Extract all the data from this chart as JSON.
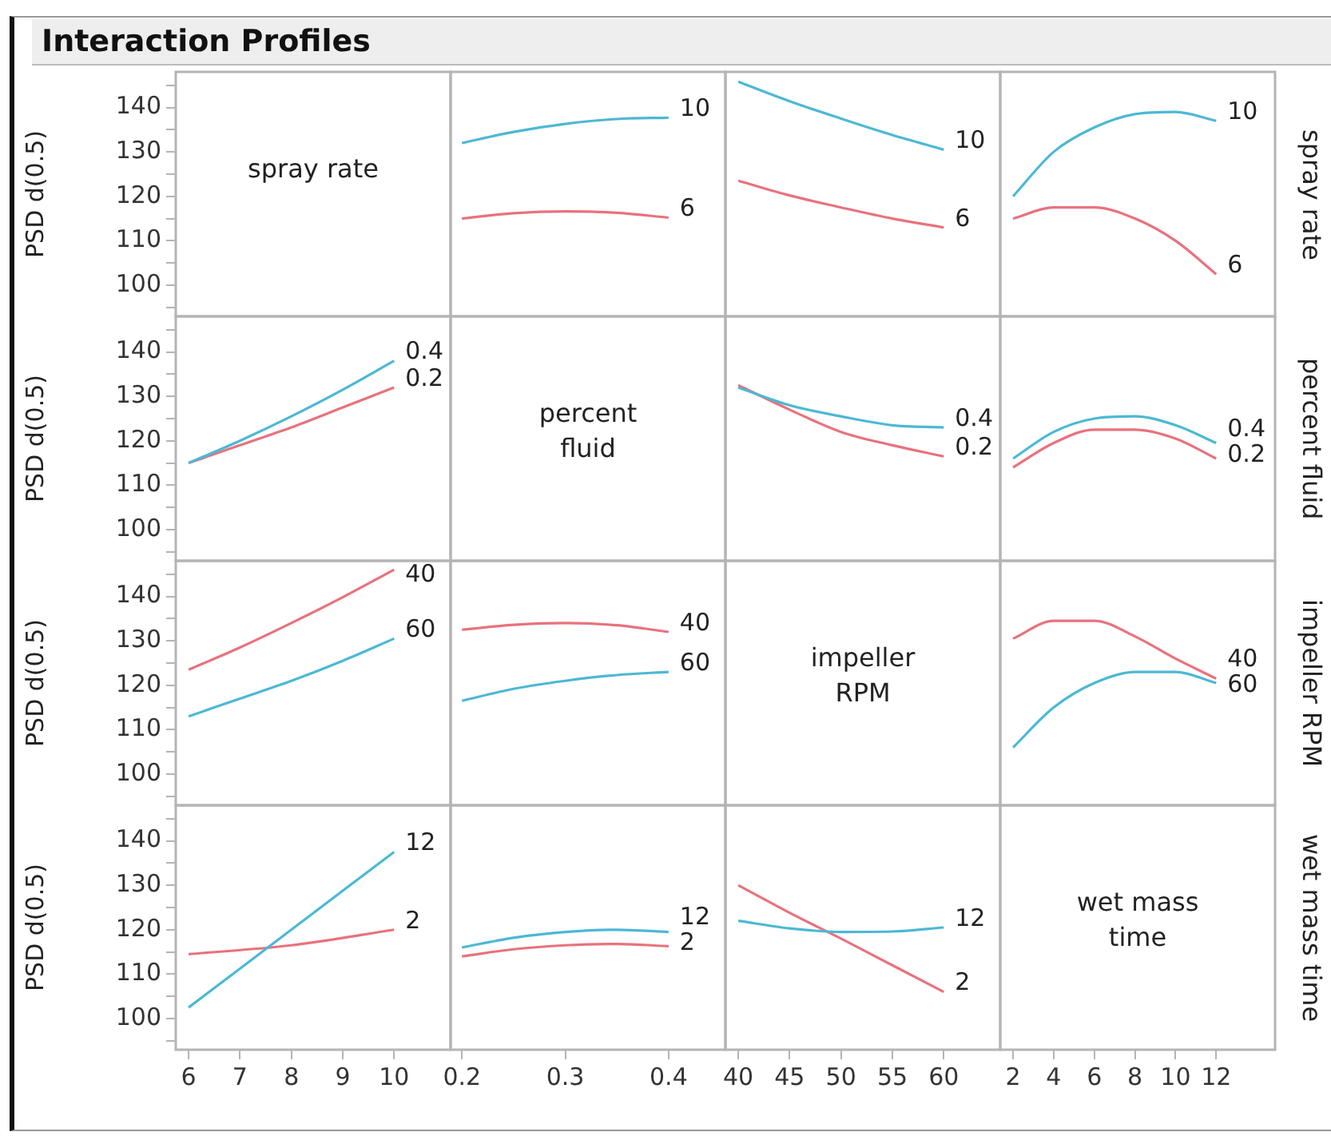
{
  "chart_data": [
    {
      "type": "line",
      "title": "Interaction Profiles",
      "annotations": [
        "spray rate"
      ],
      "ylabel": "PSD d(0.5)",
      "xlim": [
        5.75,
        11.1
      ],
      "ylim": [
        93,
        148
      ],
      "yticks": [
        {
          "value": 95,
          "label": null
        },
        100,
        {
          "value": 105,
          "label": null
        },
        110,
        {
          "value": 115,
          "label": null
        },
        120,
        {
          "value": 125,
          "label": null
        },
        130,
        {
          "value": 135,
          "label": null
        },
        140,
        {
          "value": 145,
          "label": null
        }
      ],
      "tick_labels": "y"
    },
    {
      "type": "line",
      "xlim": [
        0.189,
        0.455
      ],
      "ylim": [
        93,
        148
      ],
      "tick_labels": false,
      "series": [
        {
          "name": "10",
          "color": "#4cb8d4",
          "x": [
            0.2,
            0.25,
            0.3,
            0.35,
            0.4
          ],
          "values": [
            132,
            134.5,
            136.3,
            137.4,
            137.7
          ]
        },
        {
          "name": "6",
          "color": "#e8727d",
          "x": [
            0.2,
            0.25,
            0.3,
            0.35,
            0.4
          ],
          "values": [
            115,
            116.2,
            116.6,
            116.3,
            115.2
          ]
        }
      ]
    },
    {
      "type": "line",
      "xlim": [
        38.75,
        65.5
      ],
      "ylim": [
        93,
        148
      ],
      "tick_labels": false,
      "series": [
        {
          "name": "10",
          "color": "#4cb8d4",
          "x": [
            40,
            45,
            50,
            55,
            60
          ],
          "values": [
            145.8,
            141.4,
            137.5,
            133.8,
            130.5
          ]
        },
        {
          "name": "6",
          "color": "#e8727d",
          "x": [
            40,
            45,
            50,
            55,
            60
          ],
          "values": [
            123.5,
            120.2,
            117.5,
            115,
            113
          ]
        }
      ]
    },
    {
      "type": "line",
      "xlim": [
        1.37,
        14.9
      ],
      "ylim": [
        93,
        148
      ],
      "tick_labels": false,
      "y2label": "spray rate",
      "series": [
        {
          "name": "10",
          "color": "#4cb8d4",
          "x": [
            2,
            4,
            6,
            8,
            10,
            12
          ],
          "values": [
            120,
            130,
            135.5,
            138.5,
            139,
            137
          ]
        },
        {
          "name": "6",
          "color": "#e8727d",
          "x": [
            2,
            4,
            6,
            8,
            10,
            12
          ],
          "values": [
            115,
            117.5,
            117.5,
            115,
            110,
            102.5
          ]
        }
      ]
    },
    {
      "type": "line",
      "xlim": [
        5.75,
        11.1
      ],
      "ylim": [
        93,
        148
      ],
      "ylabel": "PSD d(0.5)",
      "yticks": [
        {
          "value": 95,
          "label": null
        },
        100,
        {
          "value": 105,
          "label": null
        },
        110,
        {
          "value": 115,
          "label": null
        },
        120,
        {
          "value": 125,
          "label": null
        },
        130,
        {
          "value": 135,
          "label": null
        },
        140,
        {
          "value": 145,
          "label": null
        }
      ],
      "tick_labels": "y",
      "series": [
        {
          "name": "0.4",
          "color": "#4cb8d4",
          "x": [
            6,
            7,
            8,
            9,
            10
          ],
          "values": [
            115,
            120,
            125.5,
            131.5,
            138
          ]
        },
        {
          "name": "0.2",
          "color": "#e8727d",
          "x": [
            6,
            7,
            8,
            9,
            10
          ],
          "values": [
            115,
            119,
            123,
            127.5,
            132
          ]
        }
      ]
    },
    {
      "type": "other",
      "annotations": [
        "percent fluid"
      ]
    },
    {
      "type": "line",
      "xlim": [
        38.75,
        65.5
      ],
      "ylim": [
        93,
        148
      ],
      "tick_labels": false,
      "series": [
        {
          "name": "0.4",
          "color": "#4cb8d4",
          "x": [
            40,
            45,
            50,
            55,
            60
          ],
          "values": [
            132,
            128,
            125.5,
            123.5,
            123
          ]
        },
        {
          "name": "0.2",
          "color": "#e8727d",
          "x": [
            40,
            45,
            50,
            55,
            60
          ],
          "values": [
            132.5,
            127,
            122,
            119,
            116.5
          ]
        }
      ]
    },
    {
      "type": "line",
      "xlim": [
        1.37,
        14.9
      ],
      "ylim": [
        93,
        148
      ],
      "tick_labels": false,
      "y2label": "percent fluid",
      "series": [
        {
          "name": "0.4",
          "color": "#4cb8d4",
          "x": [
            2,
            4,
            6,
            8,
            10,
            12
          ],
          "values": [
            116,
            122,
            125,
            125.5,
            123.5,
            119.5
          ]
        },
        {
          "name": "0.2",
          "color": "#e8727d",
          "x": [
            2,
            4,
            6,
            8,
            10,
            12
          ],
          "values": [
            114,
            119.5,
            122.5,
            122.5,
            120.5,
            116
          ]
        }
      ]
    },
    {
      "type": "line",
      "xlim": [
        5.75,
        11.1
      ],
      "ylim": [
        93,
        148
      ],
      "ylabel": "PSD d(0.5)",
      "yticks": [
        {
          "value": 95,
          "label": null
        },
        100,
        {
          "value": 105,
          "label": null
        },
        110,
        {
          "value": 115,
          "label": null
        },
        120,
        {
          "value": 125,
          "label": null
        },
        130,
        {
          "value": 135,
          "label": null
        },
        140,
        {
          "value": 145,
          "label": null
        }
      ],
      "tick_labels": "y",
      "series": [
        {
          "name": "40",
          "color": "#e8727d",
          "x": [
            6,
            7,
            8,
            9,
            10
          ],
          "values": [
            123.5,
            128.5,
            134,
            139.8,
            146
          ]
        },
        {
          "name": "60",
          "color": "#4cb8d4",
          "x": [
            6,
            7,
            8,
            9,
            10
          ],
          "values": [
            113,
            117,
            121,
            125.5,
            130.5
          ]
        }
      ]
    },
    {
      "type": "line",
      "xlim": [
        0.189,
        0.455
      ],
      "ylim": [
        93,
        148
      ],
      "tick_labels": false,
      "series": [
        {
          "name": "40",
          "color": "#e8727d",
          "x": [
            0.2,
            0.25,
            0.3,
            0.35,
            0.4
          ],
          "values": [
            132.5,
            133.6,
            134,
            133.5,
            132
          ]
        },
        {
          "name": "60",
          "color": "#4cb8d4",
          "x": [
            0.2,
            0.25,
            0.3,
            0.35,
            0.4
          ],
          "values": [
            116.5,
            119.2,
            121,
            122.3,
            123
          ]
        }
      ]
    },
    {
      "type": "other",
      "annotations": [
        "impeller RPM"
      ]
    },
    {
      "type": "line",
      "xlim": [
        1.37,
        14.9
      ],
      "ylim": [
        93,
        148
      ],
      "tick_labels": false,
      "y2label": "impeller RPM",
      "series": [
        {
          "name": "40",
          "color": "#e8727d",
          "x": [
            2,
            4,
            6,
            8,
            10,
            12
          ],
          "values": [
            130.5,
            134.5,
            134.5,
            131,
            126,
            121.5
          ]
        },
        {
          "name": "60",
          "color": "#4cb8d4",
          "x": [
            2,
            4,
            6,
            8,
            10,
            12
          ],
          "values": [
            106,
            115,
            120.5,
            123,
            123,
            120.5
          ]
        }
      ]
    },
    {
      "type": "line",
      "xlim": [
        5.75,
        11.1
      ],
      "ylim": [
        93,
        148
      ],
      "ylabel": "PSD d(0.5)",
      "xticks": [
        6,
        7,
        8,
        9,
        10
      ],
      "yticks": [
        {
          "value": 95,
          "label": null
        },
        100,
        {
          "value": 105,
          "label": null
        },
        110,
        {
          "value": 115,
          "label": null
        },
        120,
        {
          "value": 125,
          "label": null
        },
        130,
        {
          "value": 135,
          "label": null
        },
        140,
        {
          "value": 145,
          "label": null
        }
      ],
      "series": [
        {
          "name": "12",
          "color": "#4cb8d4",
          "x": [
            6,
            8,
            10
          ],
          "values": [
            102.5,
            120,
            137.5
          ]
        },
        {
          "name": "2",
          "color": "#e8727d",
          "x": [
            6,
            8,
            10
          ],
          "values": [
            114.5,
            116.5,
            120
          ]
        }
      ]
    },
    {
      "type": "line",
      "xlim": [
        0.189,
        0.455
      ],
      "ylim": [
        93,
        148
      ],
      "xticks": [
        0.2,
        0.3,
        0.4
      ],
      "tick_labels": "x",
      "series": [
        {
          "name": "12",
          "color": "#4cb8d4",
          "x": [
            0.2,
            0.25,
            0.3,
            0.35,
            0.4
          ],
          "values": [
            116,
            118.2,
            119.5,
            120,
            119.5
          ]
        },
        {
          "name": "2",
          "color": "#e8727d",
          "x": [
            0.2,
            0.25,
            0.3,
            0.35,
            0.4
          ],
          "values": [
            114,
            115.6,
            116.5,
            116.8,
            116.3
          ]
        }
      ]
    },
    {
      "type": "line",
      "xlim": [
        38.75,
        65.5
      ],
      "ylim": [
        93,
        148
      ],
      "xticks": [
        40,
        45,
        50,
        55,
        60
      ],
      "tick_labels": "x",
      "series": [
        {
          "name": "12",
          "color": "#4cb8d4",
          "x": [
            40,
            45,
            50,
            55,
            60
          ],
          "values": [
            122,
            120.3,
            119.5,
            119.6,
            120.5
          ]
        },
        {
          "name": "2",
          "color": "#e8727d",
          "x": [
            40,
            45,
            50,
            55,
            60
          ],
          "values": [
            130,
            123.8,
            118,
            112,
            106
          ]
        }
      ]
    },
    {
      "type": "line",
      "annotations": [
        "wet mass time"
      ],
      "xlim": [
        1.37,
        14.9
      ],
      "ylim": [
        93,
        148
      ],
      "xticks": [
        2,
        4,
        6,
        8,
        10,
        12
      ],
      "tick_labels": "x",
      "y2label": "wet mass time"
    }
  ]
}
